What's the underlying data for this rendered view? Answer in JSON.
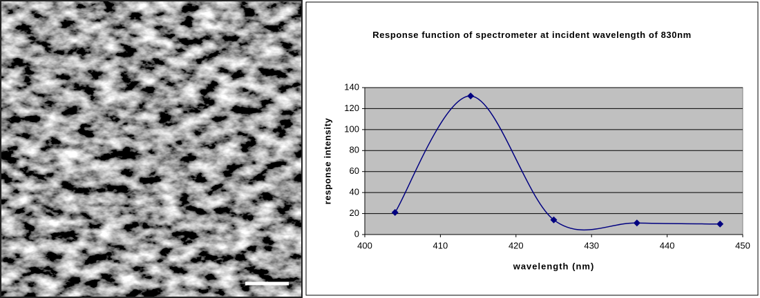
{
  "chart_data": {
    "type": "line",
    "title": "Response function of spectrometer at incident wavelength of 830nm",
    "x_label": "wavelength (nm)",
    "y_label": "response intensity",
    "x": [
      404,
      414,
      425,
      436,
      447
    ],
    "values": [
      21,
      132,
      14,
      11,
      10
    ],
    "color": "#000080",
    "smooth": true,
    "marker": "diamond",
    "xlim": [
      400,
      450
    ],
    "xticks": [
      400,
      410,
      420,
      430,
      440,
      450
    ],
    "ylim": [
      0,
      140
    ],
    "yticks": [
      0,
      20,
      40,
      60,
      80,
      100,
      120,
      140
    ],
    "grid": true,
    "plot_background": "#c0c0c0"
  }
}
